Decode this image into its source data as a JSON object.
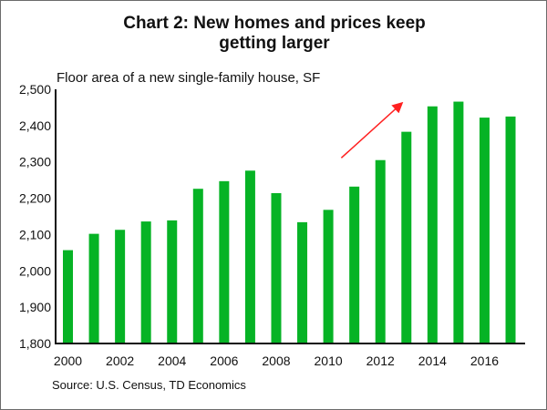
{
  "chart_data": {
    "type": "bar",
    "title": "Chart 2: New homes and prices keep getting larger",
    "title_lines": [
      "Chart 2: New homes and prices keep",
      "getting larger"
    ],
    "subtitle": "Floor area of a new single-family house, SF",
    "source": "Source: U.S. Census, TD Economics",
    "categories": [
      "2000",
      "2001",
      "2002",
      "2003",
      "2004",
      "2005",
      "2006",
      "2007",
      "2008",
      "2009",
      "2010",
      "2011",
      "2012",
      "2013",
      "2014",
      "2015",
      "2016",
      "2017"
    ],
    "values": [
      2057,
      2102,
      2113,
      2136,
      2139,
      2226,
      2247,
      2276,
      2214,
      2134,
      2168,
      2232,
      2305,
      2383,
      2453,
      2466,
      2422,
      2425
    ],
    "x_tick_labels": [
      "2000",
      "2002",
      "2004",
      "2006",
      "2008",
      "2010",
      "2012",
      "2014",
      "2016"
    ],
    "y_tick_labels": [
      "1,800",
      "1,900",
      "2,000",
      "2,100",
      "2,200",
      "2,300",
      "2,400",
      "2,500"
    ],
    "y_ticks": [
      1800,
      1900,
      2000,
      2100,
      2200,
      2300,
      2400,
      2500
    ],
    "ylim": [
      1800,
      2500
    ],
    "grid": false,
    "bar_color": "#06b325",
    "annotation": {
      "type": "arrow",
      "color": "#ff2020",
      "from": [
        "2010.5",
        2311
      ],
      "to": [
        "2012.8",
        2460
      ]
    }
  }
}
